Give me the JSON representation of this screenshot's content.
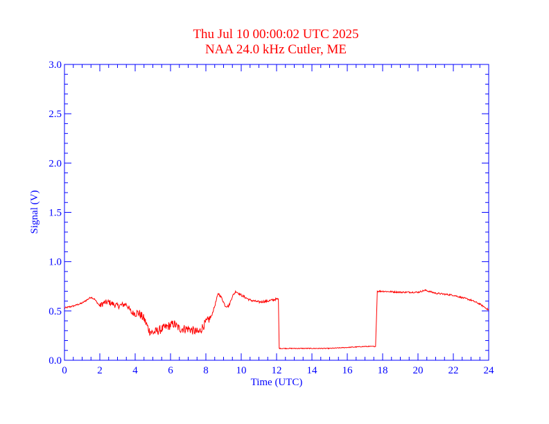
{
  "chart_data": {
    "type": "line",
    "title": "Thu Jul 10 00:00:02 UTC 2025",
    "subtitle": "NAA 24.0 kHz Cutler, ME",
    "xlabel": "Time (UTC)",
    "ylabel": "Signal (V)",
    "xlim": [
      0,
      24
    ],
    "ylim": [
      0,
      3.0
    ],
    "xticks": [
      "0",
      "2",
      "4",
      "6",
      "8",
      "10",
      "12",
      "14",
      "16",
      "18",
      "20",
      "22",
      "24"
    ],
    "yticks": [
      "0.0",
      "0.5",
      "1.0",
      "1.5",
      "2.0",
      "2.5",
      "3.0"
    ],
    "grid": false,
    "colors": {
      "line": "#ff0000",
      "axes": "#0000ff",
      "title": "#ff0000"
    },
    "series": [
      {
        "x": [
          0,
          0.5,
          1.0,
          1.5,
          1.7,
          2.0,
          2.2,
          2.5,
          3.0,
          3.5,
          3.8,
          4.2,
          4.5,
          4.8,
          5.0,
          5.3,
          5.8,
          6.2,
          6.5,
          7.0,
          7.3,
          7.6,
          7.9,
          8.3,
          8.5,
          8.7,
          8.9,
          9.1,
          9.3,
          9.5,
          9.7,
          10.0,
          10.5,
          11.0,
          11.5,
          12.0,
          12.1,
          12.15,
          12.5,
          13.0,
          14.0,
          15.0,
          16.0,
          17.0,
          17.5,
          17.6,
          17.7,
          18.0,
          19.0,
          20.0,
          20.4,
          21.0,
          22.0,
          23.0,
          23.5,
          24.0
        ],
        "y": [
          0.53,
          0.55,
          0.58,
          0.64,
          0.62,
          0.55,
          0.58,
          0.59,
          0.55,
          0.57,
          0.48,
          0.48,
          0.42,
          0.3,
          0.28,
          0.3,
          0.34,
          0.37,
          0.32,
          0.32,
          0.3,
          0.28,
          0.36,
          0.44,
          0.55,
          0.68,
          0.63,
          0.55,
          0.55,
          0.65,
          0.7,
          0.66,
          0.61,
          0.59,
          0.6,
          0.62,
          0.62,
          0.12,
          0.12,
          0.12,
          0.12,
          0.12,
          0.13,
          0.14,
          0.14,
          0.14,
          0.7,
          0.7,
          0.69,
          0.69,
          0.71,
          0.68,
          0.66,
          0.61,
          0.57,
          0.51
        ]
      }
    ]
  }
}
